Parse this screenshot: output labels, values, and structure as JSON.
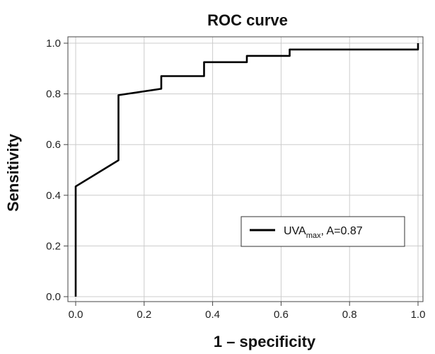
{
  "chart_data": {
    "type": "line",
    "title": "ROC curve",
    "xlabel": "1 – specificity",
    "ylabel": "Sensitivity",
    "xlim": [
      0,
      1
    ],
    "ylim": [
      0,
      1
    ],
    "xticks": [
      "0.0",
      "0.2",
      "0.4",
      "0.6",
      "0.8",
      "1.0"
    ],
    "yticks": [
      "0.0",
      "0.2",
      "0.4",
      "0.6",
      "0.8",
      "1.0"
    ],
    "grid": true,
    "legend_position": "lower-right",
    "series": [
      {
        "name": "UVAmax, A=0.87",
        "name_parts": {
          "base": "UVA",
          "sub": "max",
          "rest": ", A=0.87"
        },
        "color": "#000000",
        "x": [
          0,
          0,
          0.125,
          0.125,
          0.25,
          0.25,
          0.375,
          0.375,
          0.5,
          0.5,
          0.625,
          0.625,
          1.0,
          1.0
        ],
        "y": [
          0,
          0.435,
          0.538,
          0.795,
          0.82,
          0.87,
          0.87,
          0.925,
          0.925,
          0.95,
          0.95,
          0.975,
          0.975,
          1.0
        ]
      }
    ]
  }
}
